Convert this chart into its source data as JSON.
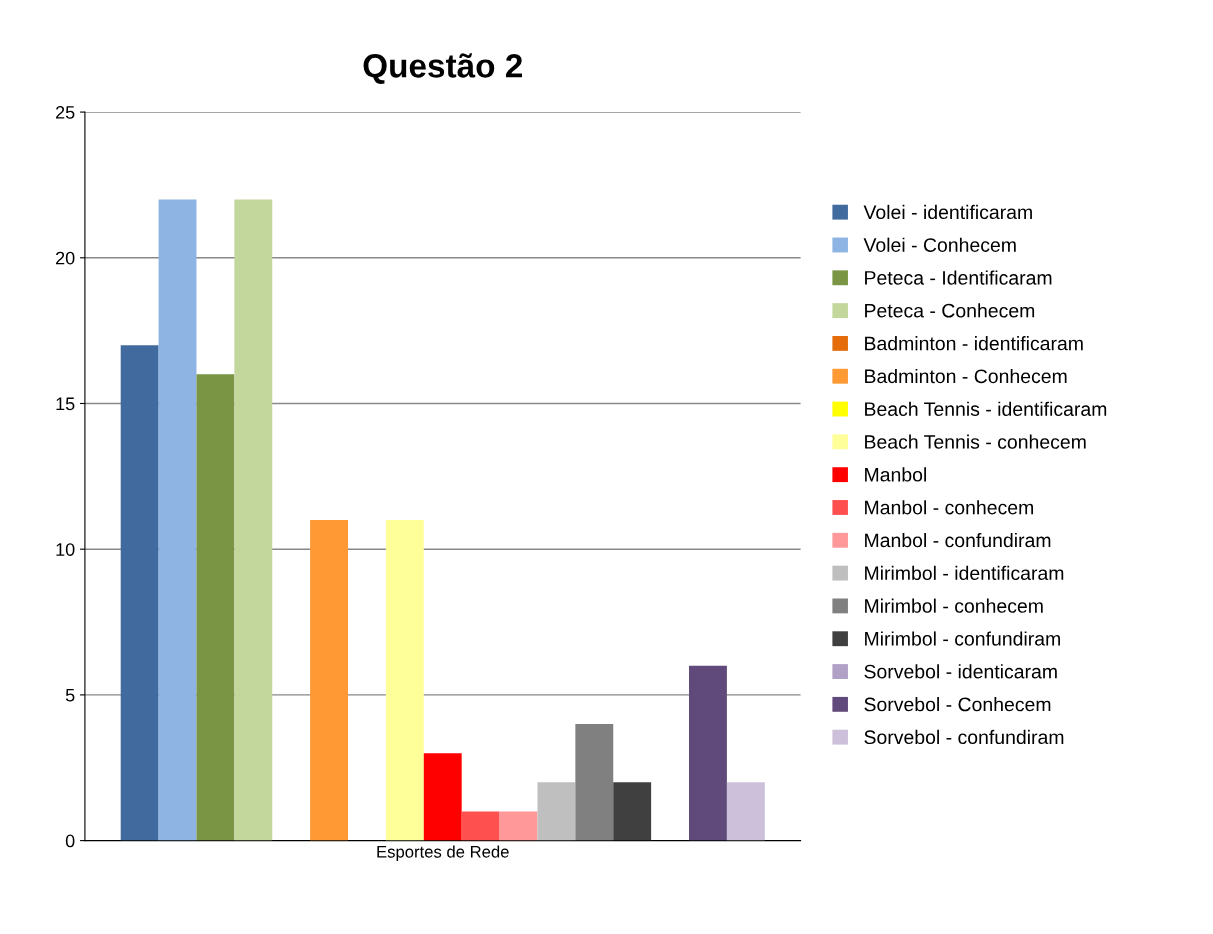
{
  "chart_data": {
    "type": "bar",
    "title": "Questão 2",
    "categories": [
      "Esportes de Rede"
    ],
    "series": [
      {
        "name": "Volei - identificaram",
        "color": "#416b9e",
        "values": [
          17
        ]
      },
      {
        "name": "Volei - Conhecem",
        "color": "#8db4e2",
        "values": [
          22
        ]
      },
      {
        "name": "Peteca - Identificaram",
        "color": "#7a9544",
        "values": [
          16
        ]
      },
      {
        "name": "Peteca - Conhecem",
        "color": "#c3d69b",
        "values": [
          22
        ]
      },
      {
        "name": "Badminton - identificaram",
        "color": "#e46c0a",
        "values": [
          0
        ]
      },
      {
        "name": "Badminton - Conhecem",
        "color": "#ff9933",
        "values": [
          11
        ]
      },
      {
        "name": "Beach Tennis - identificaram",
        "color": "#ffff00",
        "values": [
          0
        ]
      },
      {
        "name": "Beach Tennis - conhecem",
        "color": "#ffff99",
        "values": [
          11
        ]
      },
      {
        "name": "Manbol",
        "color": "#ff0000",
        "values": [
          3
        ]
      },
      {
        "name": "Manbol - conhecem",
        "color": "#ff5050",
        "values": [
          1
        ]
      },
      {
        "name": "Manbol - confundiram",
        "color": "#ff9999",
        "values": [
          1
        ]
      },
      {
        "name": "Mirimbol - identificaram",
        "color": "#bfbfbf",
        "values": [
          2
        ]
      },
      {
        "name": "Mirimbol - conhecem",
        "color": "#808080",
        "values": [
          4
        ]
      },
      {
        "name": "Mirimbol - confundiram",
        "color": "#404040",
        "values": [
          2
        ]
      },
      {
        "name": "Sorvebol - identicaram",
        "color": "#b2a1c7",
        "values": [
          0
        ]
      },
      {
        "name": "Sorvebol - Conhecem",
        "color": "#604a7b",
        "values": [
          6
        ]
      },
      {
        "name": "Sorvebol - confundiram",
        "color": "#ccc0da",
        "values": [
          2
        ]
      }
    ],
    "ylim": [
      0,
      25
    ],
    "yticks": [
      0,
      5,
      10,
      15,
      20,
      25
    ],
    "grid": "y",
    "legend": "right"
  }
}
